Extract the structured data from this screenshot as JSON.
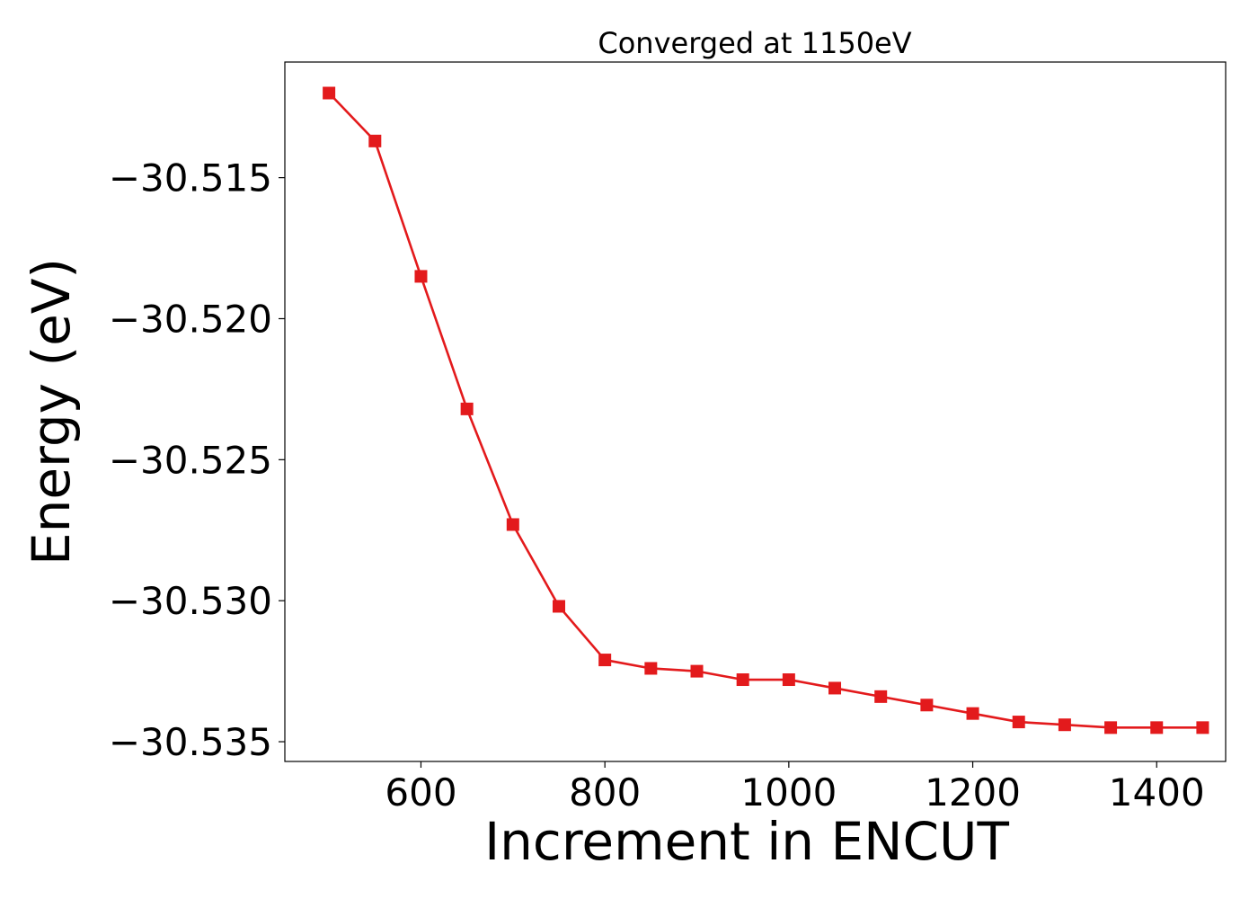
{
  "chart_data": {
    "type": "line",
    "title": "Converged at 1150eV",
    "xlabel": "Increment in ENCUT",
    "ylabel": "Energy (eV)",
    "xlim": [
      452,
      1475
    ],
    "ylim": [
      -30.5357,
      -30.5109
    ],
    "xticks": [
      600,
      800,
      1000,
      1200,
      1400
    ],
    "xtick_labels": [
      "600",
      "800",
      "1000",
      "1200",
      "1400"
    ],
    "yticks": [
      -30.515,
      -30.52,
      -30.525,
      -30.53,
      -30.535
    ],
    "ytick_labels": [
      "−30.515",
      "−30.520",
      "−30.525",
      "−30.530",
      "−30.535"
    ],
    "grid": false,
    "series": [
      {
        "color": "#e31a1c",
        "marker": "square",
        "x": [
          500,
          550,
          600,
          650,
          700,
          750,
          800,
          850,
          900,
          950,
          1000,
          1050,
          1100,
          1150,
          1200,
          1250,
          1300,
          1350,
          1400,
          1450
        ],
        "values": [
          -30.512,
          -30.5137,
          -30.5185,
          -30.5232,
          -30.5273,
          -30.5302,
          -30.5321,
          -30.5324,
          -30.5325,
          -30.5328,
          -30.5328,
          -30.5331,
          -30.5334,
          -30.5337,
          -30.534,
          -30.5343,
          -30.5344,
          -30.5345,
          -30.5345,
          -30.5345
        ]
      }
    ]
  }
}
